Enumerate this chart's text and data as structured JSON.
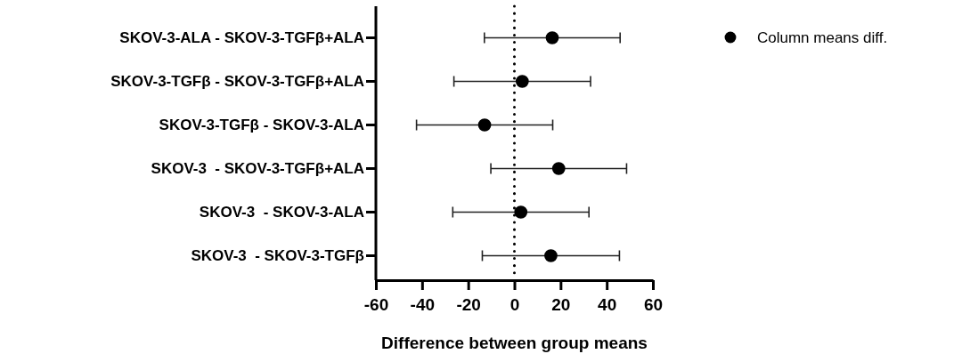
{
  "chart_data": {
    "type": "scatter",
    "orientation": "horizontal",
    "xlabel": "Difference between group means",
    "categories": [
      "SKOV-3-ALA - SKOV-3-TGFβ+ALA",
      "SKOV-3-TGFβ - SKOV-3-TGFβ+ALA",
      "SKOV-3-TGFβ - SKOV-3-ALA",
      "SKOV-3  - SKOV-3-TGFβ+ALA",
      "SKOV-3  - SKOV-3-ALA",
      "SKOV-3  - SKOV-3-TGFβ"
    ],
    "series": [
      {
        "name": "Column means diff.",
        "color": "#000000",
        "values": [
          16.4,
          3.4,
          -12.9,
          19.2,
          2.8,
          15.8
        ],
        "errors": [
          29.4,
          29.6,
          29.5,
          29.4,
          29.5,
          29.7
        ]
      }
    ],
    "xlim": [
      -60,
      60
    ],
    "xticks": [
      -60,
      -40,
      -20,
      0,
      20,
      40,
      60
    ],
    "ref_lines": [
      {
        "axis": "x",
        "value": 0,
        "line_style": "dotted",
        "color": "#000000"
      }
    ],
    "legend": "top right",
    "marker": "circle",
    "grid": false
  }
}
